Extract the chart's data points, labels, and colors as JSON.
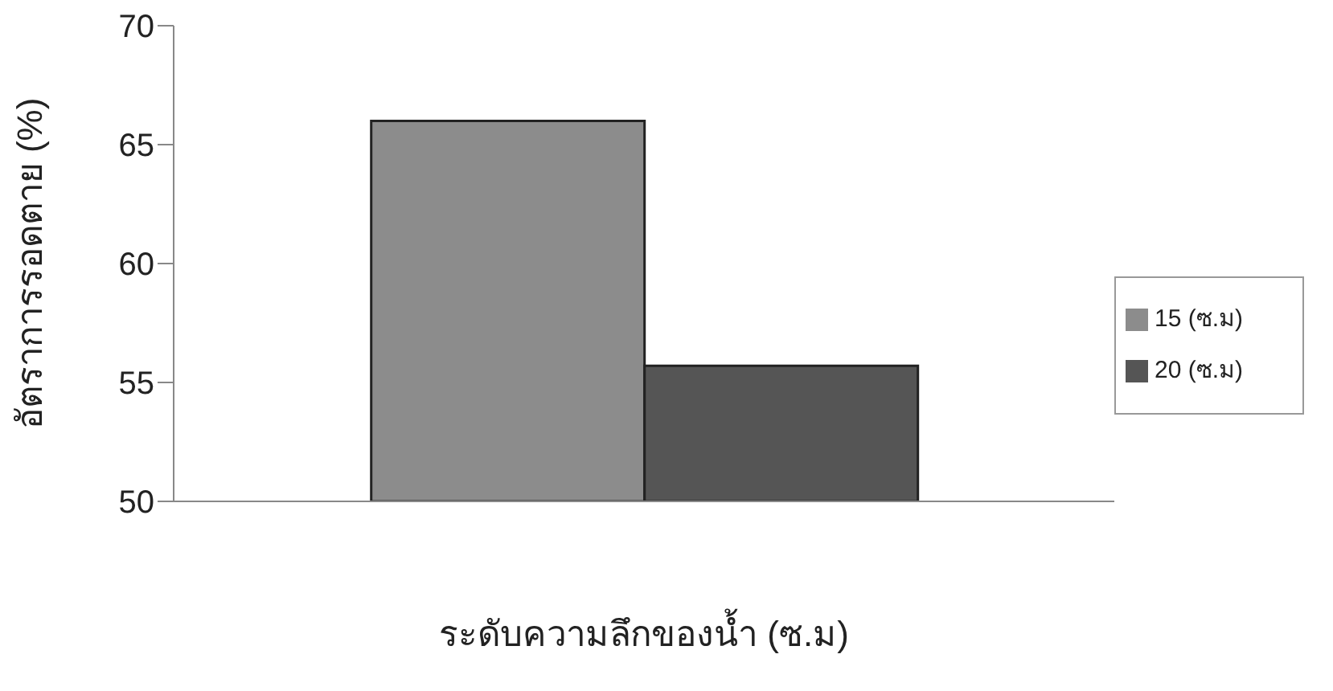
{
  "chart_data": {
    "type": "bar",
    "xlabel": "ระดับความลึกของน้ำ (ซ.ม)",
    "ylabel": "อัตราการรอดตาย (%)",
    "categories": [
      null
    ],
    "series": [
      {
        "name": "15 (ซ.ม)",
        "color": "#8c8c8c",
        "values": [
          66
        ]
      },
      {
        "name": "20 (ซ.ม)",
        "color": "#555555",
        "values": [
          55.7
        ]
      }
    ],
    "ylim": [
      50,
      70
    ],
    "yticks": [
      50,
      55,
      60,
      65,
      70
    ],
    "grid": false,
    "legend": "right"
  }
}
